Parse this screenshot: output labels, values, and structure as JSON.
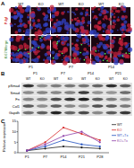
{
  "panel_a": {
    "label": "A",
    "rows": [
      "Pdgf",
      "Ki67/Merge"
    ],
    "columns": [
      "WT",
      "KO",
      "WT",
      "KO",
      "WT",
      "KO"
    ],
    "groups": [
      "P1",
      "P7",
      "P14"
    ]
  },
  "panel_b": {
    "label": "B",
    "groups": [
      "P1",
      "P7",
      "P14",
      "P21"
    ],
    "columns": [
      "WT",
      "KO",
      "WT",
      "KO",
      "WT",
      "KO",
      "WT",
      "KO"
    ],
    "rows": [
      "pSmad",
      "Smad",
      "Fn",
      "Col1",
      "Gapdh"
    ]
  },
  "panel_c": {
    "label": "C"
  },
  "chart_data": {
    "type": "line",
    "y_label": "Relative expression",
    "categories": [
      "P1",
      "P7",
      "P14",
      "P21",
      "P28"
    ],
    "series": [
      {
        "name": "WT",
        "color": "#222222",
        "values": [
          1,
          2,
          3,
          2.5,
          2
        ]
      },
      {
        "name": "KO",
        "color": "#d62728",
        "values": [
          1,
          5,
          12,
          9,
          6
        ]
      },
      {
        "name": "WT+Tx",
        "color": "#1f4fbf",
        "values": [
          1,
          3,
          6,
          4,
          3
        ]
      },
      {
        "name": "KO+Tx",
        "color": "#8e3fa8",
        "values": [
          1,
          4,
          8,
          10,
          5
        ]
      }
    ],
    "ylim": [
      0,
      15
    ],
    "yticks": [
      0,
      5,
      10,
      15
    ],
    "marker": "circle",
    "legend": "right"
  }
}
